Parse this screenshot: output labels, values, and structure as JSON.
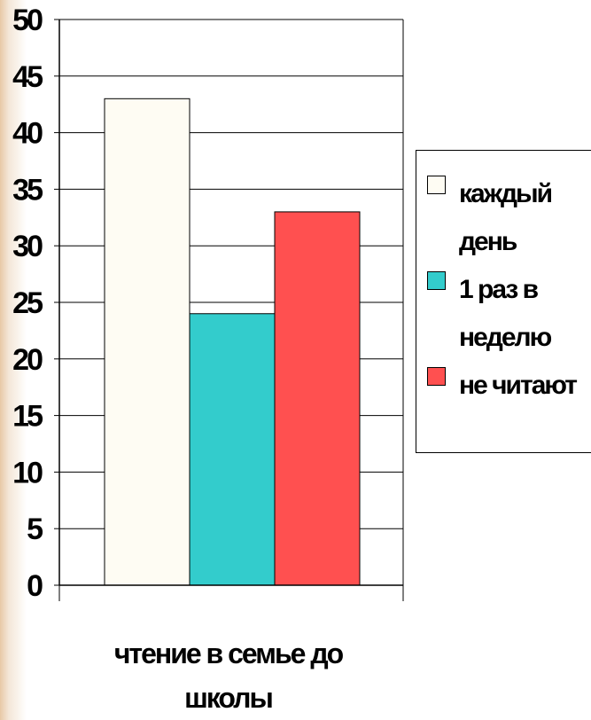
{
  "chart_data": {
    "type": "bar",
    "categories": [
      "чтение в семье до школы"
    ],
    "category_label_line1": "чтение в семье до",
    "category_label_line2": "школы",
    "series": [
      {
        "name": "каждый день",
        "name_line1": "каждый",
        "name_line2": "день",
        "values": [
          43
        ],
        "color": "#fefcf3"
      },
      {
        "name": "1 раз в неделю",
        "name_line1": "1 раз в",
        "name_line2": "неделю",
        "values": [
          24
        ],
        "color": "#33cccc"
      },
      {
        "name": "не читают",
        "name_line1": "не читают",
        "name_line2": "",
        "values": [
          33
        ],
        "color": "#ff5050"
      }
    ],
    "ylim": [
      0,
      50
    ],
    "yticks": [
      "0",
      "5",
      "10",
      "15",
      "20",
      "25",
      "30",
      "35",
      "40",
      "45",
      "50"
    ],
    "grid": true,
    "legend_position": "right",
    "title": "",
    "xlabel": "",
    "ylabel": ""
  }
}
